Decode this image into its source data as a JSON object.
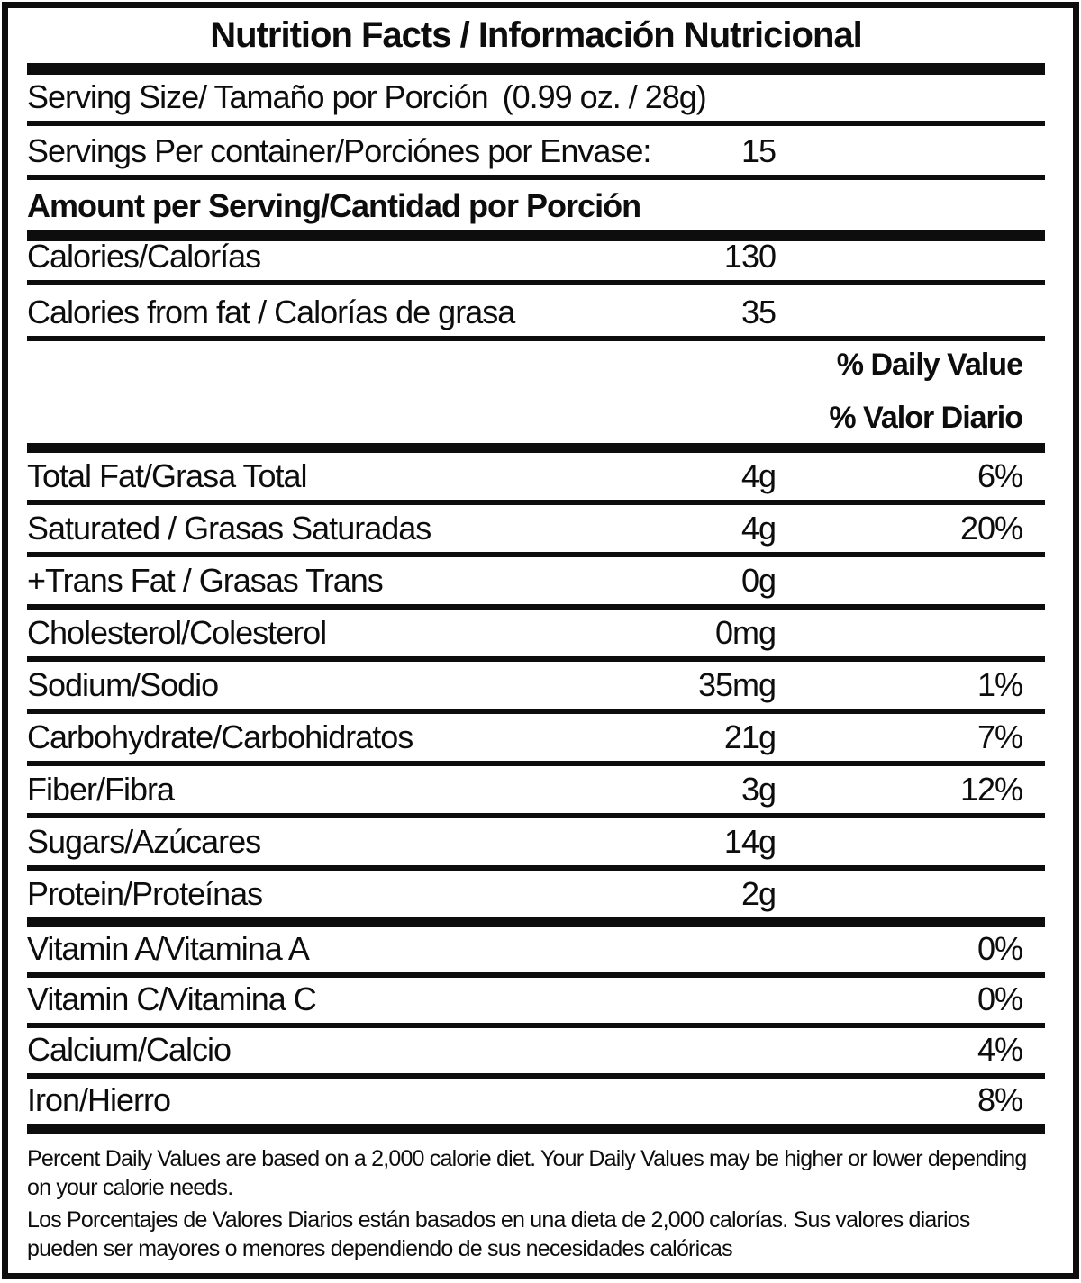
{
  "title": "Nutrition Facts / Información Nutricional",
  "serving": {
    "size_label": "Serving Size/ Tamaño por Porción",
    "size_value": "(0.99 oz. / 28g)",
    "per_container_label": "Servings Per container/Porciónes por Envase:",
    "per_container_value": "15"
  },
  "amount_per_serving_label": "Amount per Serving/Cantidad por Porción",
  "calories": {
    "label": "Calories/Calorías",
    "value": "130"
  },
  "calories_from_fat": {
    "label": "Calories from fat / Calorías de grasa",
    "value": "35"
  },
  "daily_value_header": {
    "line_en": "% Daily Value",
    "line_es": "% Valor Diario"
  },
  "nutrients": [
    {
      "label": "Total Fat/Grasa Total",
      "amount": "4g",
      "dv": "6%"
    },
    {
      "label": "Saturated / Grasas Saturadas",
      "amount": "4g",
      "dv": "20%"
    },
    {
      "label": "+Trans Fat / Grasas Trans",
      "amount": "0g",
      "dv": ""
    },
    {
      "label": "Cholesterol/Colesterol",
      "amount": "0mg",
      "dv": ""
    },
    {
      "label": "Sodium/Sodio",
      "amount": "35mg",
      "dv": "1%"
    },
    {
      "label": "Carbohydrate/Carbohidratos",
      "amount": "21g",
      "dv": "7%"
    },
    {
      "label": "Fiber/Fibra",
      "amount": "3g",
      "dv": "12%"
    },
    {
      "label": "Sugars/Azúcares",
      "amount": "14g",
      "dv": ""
    },
    {
      "label": "Protein/Proteínas",
      "amount": "2g",
      "dv": ""
    }
  ],
  "vitamins": [
    {
      "label": "Vitamin A/Vitamina A",
      "dv": "0%"
    },
    {
      "label": "Vitamin C/Vitamina C",
      "dv": "0%"
    },
    {
      "label": "Calcium/Calcio",
      "dv": "4%"
    },
    {
      "label": "Iron/Hierro",
      "dv": "8%"
    }
  ],
  "footnotes": {
    "english": "Percent Daily Values are based on a 2,000 calorie diet. Your Daily Values may be higher or lower depending on your calorie needs.",
    "spanish": "Los Porcentajes de Valores Diarios están basados en una dieta de 2,000 calorías. Sus valores diarios pueden ser mayores o menores dependiendo de sus necesidades calóricas"
  },
  "colors": {
    "ink": "#0d0d0d",
    "paper": "#ffffff"
  }
}
